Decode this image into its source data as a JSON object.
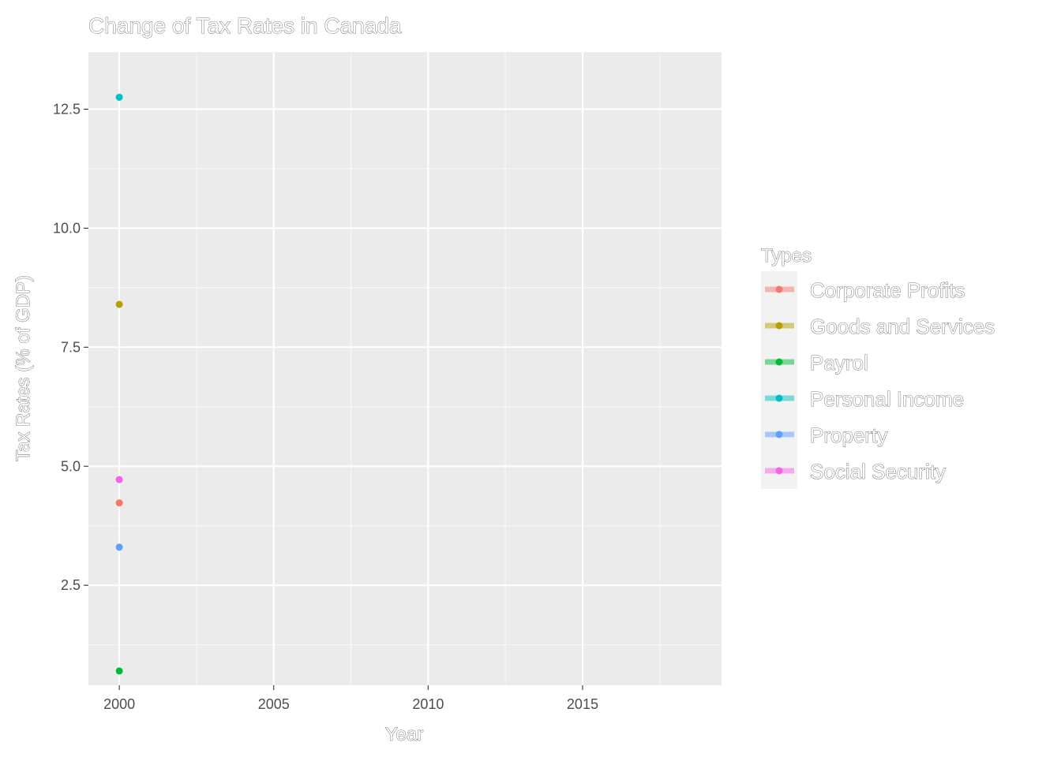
{
  "chart_data": {
    "type": "scatter",
    "title": "Change of Tax Rates in Canada",
    "xlabel": "Year",
    "ylabel": "Tax Rates (% of GDP)",
    "xlim": [
      1999,
      2019.5
    ],
    "ylim": [
      0.4,
      13.7
    ],
    "x_ticks": [
      2000,
      2005,
      2010,
      2015
    ],
    "y_ticks": [
      2.5,
      5.0,
      7.5,
      10.0,
      12.5
    ],
    "x_tick_labels": [
      "2000",
      "2005",
      "2010",
      "2015"
    ],
    "y_tick_labels": [
      "2.5",
      "5.0",
      "7.5",
      "10.0",
      "12.5"
    ],
    "grid": true,
    "legend_title": "Types",
    "legend_position": "right",
    "series": [
      {
        "name": "Corporate Profits",
        "color": "#F8766D",
        "points": [
          {
            "x": 2000,
            "y": 4.23
          }
        ]
      },
      {
        "name": "Goods and Services",
        "color": "#B79F00",
        "points": [
          {
            "x": 2000,
            "y": 8.4
          }
        ]
      },
      {
        "name": "Payrol",
        "color": "#00BA38",
        "points": [
          {
            "x": 2000,
            "y": 0.7
          }
        ]
      },
      {
        "name": "Personal Income",
        "color": "#00BFC4",
        "points": [
          {
            "x": 2000,
            "y": 12.75
          }
        ]
      },
      {
        "name": "Property",
        "color": "#619CFF",
        "points": [
          {
            "x": 2000,
            "y": 3.3
          }
        ]
      },
      {
        "name": "Social Security",
        "color": "#F564E3",
        "points": [
          {
            "x": 2000,
            "y": 4.72
          }
        ]
      }
    ]
  }
}
